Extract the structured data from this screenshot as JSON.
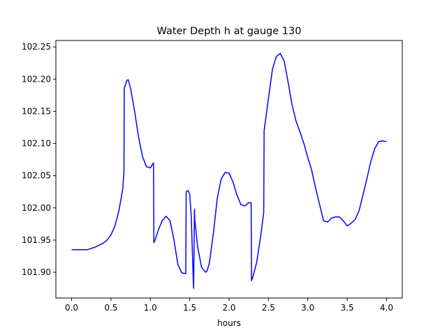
{
  "chart_data": {
    "type": "line",
    "title": "Water Depth h at gauge 130",
    "xlabel": "hours",
    "ylabel": "",
    "xlim": [
      -0.2,
      4.2
    ],
    "ylim": [
      101.86,
      102.26
    ],
    "xticks": [
      0.0,
      0.5,
      1.0,
      1.5,
      2.0,
      2.5,
      3.0,
      3.5,
      4.0
    ],
    "xtick_labels": [
      "0.0",
      "0.5",
      "1.0",
      "1.5",
      "2.0",
      "2.5",
      "3.0",
      "3.5",
      "4.0"
    ],
    "yticks": [
      101.9,
      101.95,
      102.0,
      102.05,
      102.1,
      102.15,
      102.2,
      102.25
    ],
    "ytick_labels": [
      "101.90",
      "101.95",
      "102.00",
      "102.05",
      "102.10",
      "102.15",
      "102.20",
      "102.25"
    ],
    "grid": false,
    "series": [
      {
        "color": "#0000ff",
        "x": [
          0.0,
          0.1,
          0.2,
          0.25,
          0.3,
          0.35,
          0.4,
          0.45,
          0.5,
          0.55,
          0.6,
          0.65,
          0.665,
          0.668,
          0.7,
          0.72,
          0.75,
          0.8,
          0.85,
          0.9,
          0.95,
          1.0,
          1.04,
          1.045,
          1.06,
          1.1,
          1.15,
          1.2,
          1.25,
          1.3,
          1.35,
          1.4,
          1.45,
          1.455,
          1.48,
          1.5,
          1.52,
          1.545,
          1.55,
          1.56,
          1.565,
          1.57,
          1.6,
          1.65,
          1.7,
          1.72,
          1.75,
          1.8,
          1.85,
          1.9,
          1.95,
          2.0,
          2.05,
          2.1,
          2.15,
          2.2,
          2.25,
          2.28,
          2.285,
          2.3,
          2.35,
          2.4,
          2.44,
          2.445,
          2.5,
          2.55,
          2.6,
          2.65,
          2.7,
          2.75,
          2.8,
          2.85,
          2.9,
          2.95,
          3.0,
          3.05,
          3.1,
          3.15,
          3.2,
          3.25,
          3.3,
          3.35,
          3.4,
          3.45,
          3.5,
          3.55,
          3.6,
          3.65,
          3.7,
          3.75,
          3.8,
          3.85,
          3.9,
          3.95,
          4.0
        ],
        "y": [
          101.935,
          101.935,
          101.935,
          101.937,
          101.939,
          101.942,
          101.945,
          101.95,
          101.958,
          101.972,
          101.995,
          102.03,
          102.058,
          102.185,
          102.198,
          102.199,
          102.185,
          102.15,
          102.11,
          102.08,
          102.064,
          102.062,
          102.07,
          101.946,
          101.95,
          101.965,
          101.98,
          101.987,
          101.98,
          101.95,
          101.912,
          101.899,
          101.898,
          102.025,
          102.027,
          102.021,
          101.985,
          101.888,
          101.875,
          101.998,
          101.98,
          101.975,
          101.94,
          101.908,
          101.9,
          101.902,
          101.915,
          101.96,
          102.015,
          102.045,
          102.055,
          102.054,
          102.04,
          102.02,
          102.005,
          102.003,
          102.008,
          102.008,
          101.887,
          101.892,
          101.915,
          101.955,
          101.993,
          102.12,
          102.17,
          102.215,
          102.235,
          102.24,
          102.228,
          102.195,
          102.16,
          102.135,
          102.118,
          102.1,
          102.078,
          102.058,
          102.03,
          102.005,
          101.98,
          101.978,
          101.984,
          101.986,
          101.986,
          101.98,
          101.972,
          101.976,
          101.982,
          101.995,
          102.02,
          102.045,
          102.072,
          102.092,
          102.103,
          102.104,
          102.103
        ]
      }
    ]
  }
}
